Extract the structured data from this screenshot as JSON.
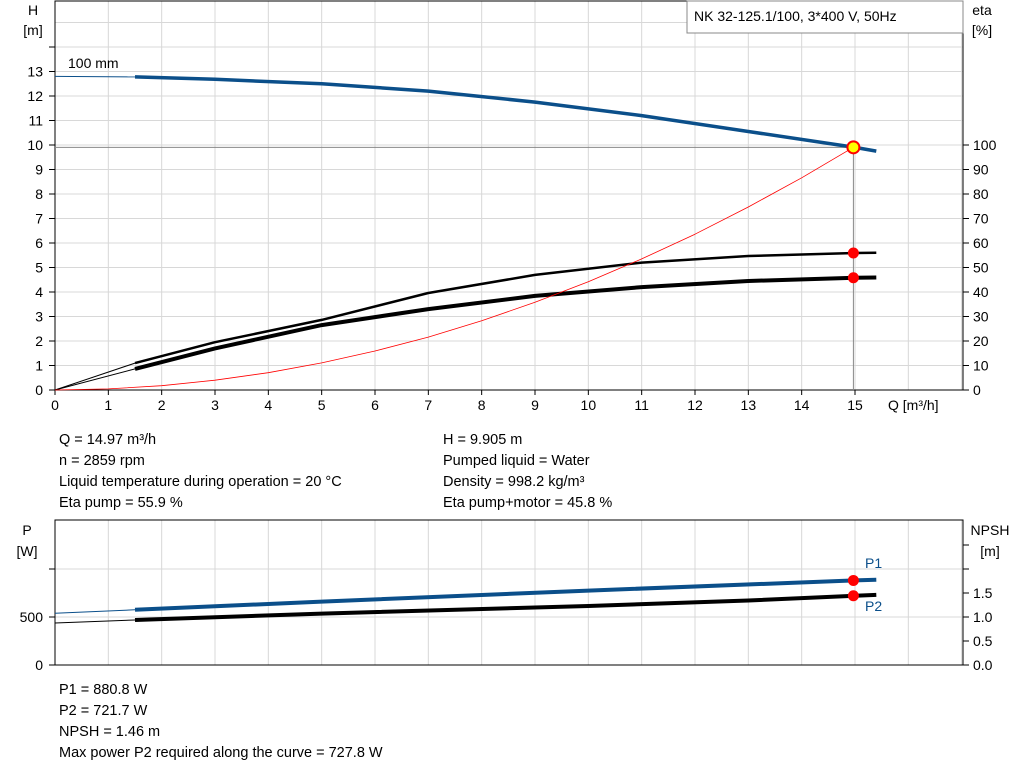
{
  "chart_data": [
    {
      "type": "line",
      "title": "NK 32-125.1/100, 3*400 V, 50Hz",
      "xlabel": "Q [m³/h]",
      "ylabel": "H\n[m]",
      "ylabel_left": [
        "H",
        "[m]"
      ],
      "ylabel_right": [
        "eta",
        "[%]"
      ],
      "xlim": [
        0,
        17
      ],
      "ylim": [
        0,
        15.9
      ],
      "y2lim": [
        0,
        159
      ],
      "x_ticks": [
        0,
        1,
        2,
        3,
        4,
        5,
        6,
        7,
        8,
        9,
        10,
        11,
        12,
        13,
        14,
        15
      ],
      "y_ticks": [
        0,
        1,
        2,
        3,
        4,
        5,
        6,
        7,
        8,
        9,
        10,
        11,
        12,
        13
      ],
      "y2_ticks": [
        0,
        10,
        20,
        30,
        40,
        50,
        60,
        70,
        80,
        90,
        100
      ],
      "grid": true,
      "curve_label": "100 mm",
      "series": [
        {
          "id": "H",
          "axis": "left",
          "color": "#0b4f8a",
          "x": [
            1.5,
            3,
            5,
            7,
            9,
            11,
            13,
            15,
            15.4
          ],
          "y": [
            12.78,
            12.68,
            12.5,
            12.2,
            11.75,
            11.2,
            10.55,
            9.9,
            9.75
          ],
          "extension": {
            "x": [
              0,
              1.5
            ],
            "y": [
              12.8,
              12.78
            ]
          }
        },
        {
          "id": "eta-pump",
          "axis": "right",
          "color": "#000000",
          "x": [
            1.5,
            3,
            5,
            7,
            9,
            11,
            13,
            15,
            15.4
          ],
          "y": [
            11,
            19.5,
            28.6,
            39.6,
            47,
            52,
            54.7,
            55.9,
            56
          ],
          "extension": {
            "x": [
              0,
              1.5
            ],
            "y": [
              0,
              11
            ]
          }
        },
        {
          "id": "eta-pump-motor",
          "axis": "right",
          "color": "#000000",
          "x": [
            1.5,
            3,
            5,
            7,
            9,
            11,
            13,
            15,
            15.4
          ],
          "y": [
            8.6,
            17,
            26.5,
            33,
            38.4,
            42,
            44.5,
            45.8,
            45.9
          ],
          "extension": {
            "x": [
              0,
              1.5
            ],
            "y": [
              0,
              8.6
            ]
          }
        },
        {
          "id": "system-curve",
          "axis": "left",
          "color": "#ff0000",
          "x": [
            0,
            1,
            2,
            3,
            4,
            5,
            6,
            7,
            8,
            9,
            10,
            11,
            12,
            13,
            14,
            14.97
          ],
          "y": [
            0,
            0.044,
            0.177,
            0.398,
            0.707,
            1.105,
            1.59,
            2.16,
            2.83,
            3.58,
            4.42,
            5.35,
            6.36,
            7.47,
            8.66,
            9.905
          ]
        }
      ],
      "operating_point": {
        "q": 14.97,
        "h": 9.905,
        "eta_pump": 55.9,
        "eta_pump_motor": 45.8
      }
    },
    {
      "type": "line",
      "ylabel_left": [
        "P",
        "[W]"
      ],
      "ylabel_right": [
        "NPSH",
        "[m]"
      ],
      "xlim": [
        0,
        17
      ],
      "ylim": [
        0,
        1500
      ],
      "y2lim": [
        0,
        3.0
      ],
      "y_ticks": [
        0,
        500
      ],
      "y2_ticks": [
        "0.0",
        "0.5",
        "1.0",
        "1.5"
      ],
      "grid": true,
      "series": [
        {
          "name": "P1",
          "color": "#0b4f8a",
          "x": [
            1.5,
            5,
            10,
            15,
            15.4
          ],
          "y": [
            575,
            660,
            775,
            881,
            888
          ],
          "extension": {
            "x": [
              0,
              1.5
            ],
            "y": [
              540,
              575
            ]
          }
        },
        {
          "name": "P2",
          "color": "#000000",
          "x": [
            1.5,
            5,
            10,
            13,
            15,
            15.4
          ],
          "y": [
            469,
            535,
            615,
            672,
            722,
            730
          ],
          "extension": {
            "x": [
              0,
              1.5
            ],
            "y": [
              437,
              469
            ]
          }
        }
      ],
      "operating_point": {
        "q": 14.97,
        "p1": 880.8,
        "p2": 721.7
      }
    }
  ],
  "info_top_left": [
    "Q = 14.97 m³/h",
    "n = 2859 rpm",
    "Liquid temperature during operation = 20 °C",
    "Eta pump = 55.9 %"
  ],
  "info_top_right": [
    "H = 9.905 m",
    "Pumped liquid = Water",
    "Density = 998.2 kg/m³",
    "Eta pump+motor = 45.8 %"
  ],
  "info_bottom": [
    "P1 = 880.8 W",
    "P2 = 721.7 W",
    "NPSH = 1.46 m",
    "Max power P2 required along the curve = 727.8 W"
  ]
}
